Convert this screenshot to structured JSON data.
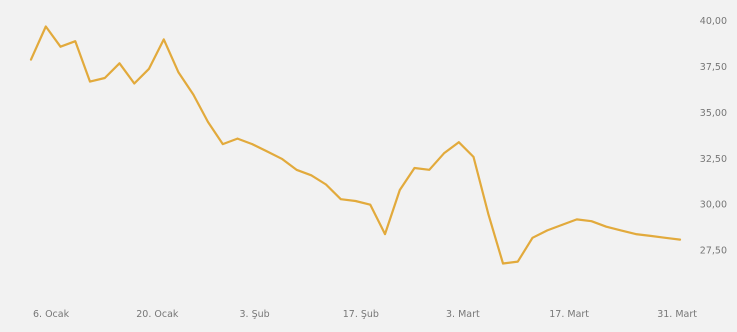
{
  "chart_data": {
    "type": "line",
    "title": "",
    "xlabel": "",
    "ylabel": "",
    "x_tick_labels": [
      "6. Ocak",
      "20. Ocak",
      "3. Şub",
      "17. Şub",
      "3. Mart",
      "17. Mart",
      "31. Mart"
    ],
    "y_tick_labels": [
      "40,00",
      "37,50",
      "35,00",
      "32,50",
      "30,00",
      "27,50"
    ],
    "y_ticks": [
      40,
      37.5,
      35,
      32.5,
      30,
      27.5
    ],
    "ylim": [
      25.9,
      40.6
    ],
    "xlim": [
      0,
      88
    ],
    "grid": false,
    "legend": "none",
    "line_color": "#e2aa3c",
    "background_color": "#f2f2f2",
    "series": [
      {
        "x": [
          0,
          2,
          4,
          6,
          8,
          10,
          12,
          14,
          16,
          18,
          20,
          22,
          24,
          26,
          28,
          30,
          32,
          34,
          36,
          38,
          40,
          42,
          44,
          46,
          48,
          50,
          52,
          54,
          56,
          58,
          60,
          62,
          64,
          66,
          68,
          70,
          72,
          74,
          76,
          78,
          80,
          82,
          84,
          86,
          88
        ],
        "values": [
          37.9,
          39.7,
          38.6,
          38.9,
          36.7,
          36.9,
          37.7,
          36.6,
          37.4,
          39.0,
          37.2,
          36.0,
          34.5,
          33.3,
          33.6,
          33.3,
          32.9,
          32.5,
          31.9,
          31.6,
          31.1,
          30.3,
          30.2,
          30.0,
          28.4,
          30.8,
          32.0,
          31.9,
          32.8,
          33.4,
          32.6,
          29.5,
          26.8,
          26.9,
          28.2,
          28.6,
          28.9,
          29.2,
          29.1,
          28.8,
          28.6,
          28.4,
          28.3,
          28.2,
          28.1
        ]
      }
    ]
  }
}
